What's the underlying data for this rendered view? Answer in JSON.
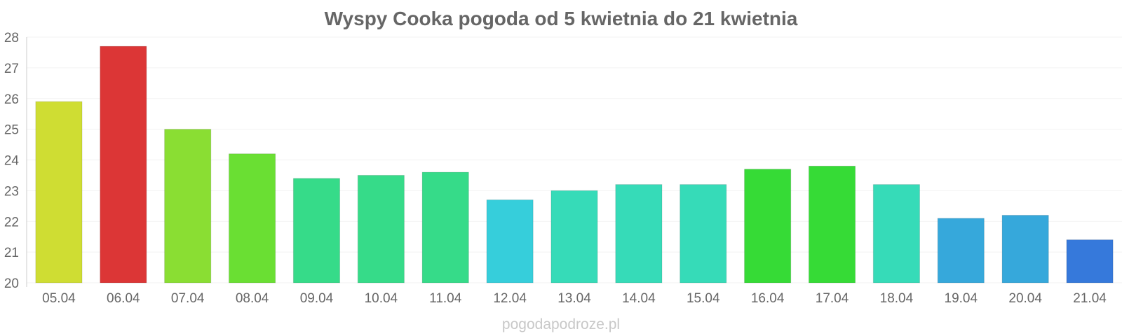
{
  "chart_data": {
    "type": "bar",
    "title": "Wyspy Cooka pogoda od 5 kwietnia do 21 kwietnia",
    "xlabel": "",
    "ylabel": "",
    "ylim": [
      20,
      28
    ],
    "yticks": [
      "20",
      "21",
      "22",
      "23",
      "24",
      "25",
      "26",
      "27",
      "28"
    ],
    "grid": true,
    "categories": [
      "05.04",
      "06.04",
      "07.04",
      "08.04",
      "09.04",
      "10.04",
      "11.04",
      "12.04",
      "13.04",
      "14.04",
      "15.04",
      "16.04",
      "17.04",
      "18.04",
      "19.04",
      "20.04",
      "21.04"
    ],
    "values": [
      25.9,
      27.7,
      25.0,
      24.2,
      23.4,
      23.5,
      23.6,
      22.7,
      23.0,
      23.2,
      23.2,
      23.7,
      23.8,
      23.2,
      22.1,
      22.2,
      21.4
    ],
    "colors": [
      "#cfdd33",
      "#dc3636",
      "#8ade33",
      "#6adf33",
      "#36db89",
      "#36db89",
      "#36db89",
      "#36cedb",
      "#36dbb8",
      "#36dbb8",
      "#36dbb8",
      "#36db36",
      "#36db36",
      "#36dbb8",
      "#36a8db",
      "#36a8db",
      "#3679db"
    ]
  },
  "footer": {
    "watermark": "pogodapodroze.pl"
  }
}
